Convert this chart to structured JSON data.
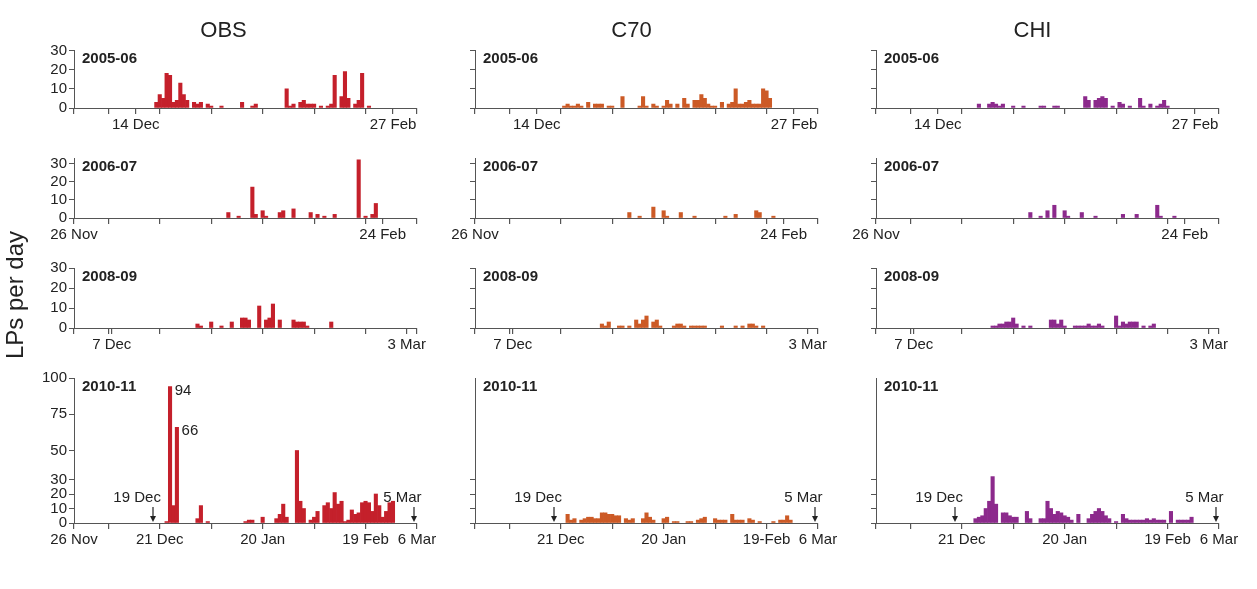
{
  "chart_data": [
    {
      "type": "bar",
      "title": "OBS",
      "subtitle": "2005-06",
      "xlim": [
        "2005-11-26",
        "2006-03-06"
      ],
      "xticks": [
        {
          "value": "2005-11-26",
          "label": null
        },
        {
          "value": "2005-12-06",
          "label": null
        },
        {
          "value": "2005-12-14",
          "label": "14 Dec"
        },
        {
          "value": "2005-12-21",
          "label": null
        },
        {
          "value": "2006-01-05",
          "label": null
        },
        {
          "value": "2006-01-20",
          "label": null
        },
        {
          "value": "2006-02-04",
          "label": null
        },
        {
          "value": "2006-02-19",
          "label": null
        },
        {
          "value": "2006-02-27",
          "label": "27 Feb"
        },
        {
          "value": "2006-03-06",
          "label": null
        }
      ],
      "ylim": [
        0,
        30
      ],
      "yticks": [
        0,
        10,
        20,
        30
      ],
      "series": [
        {
          "color": "#c4202b",
          "x": [
            "2005-12-20",
            "2005-12-21",
            "2005-12-22",
            "2005-12-23",
            "2005-12-24",
            "2005-12-25",
            "2005-12-26",
            "2005-12-27",
            "2005-12-28",
            "2005-12-29",
            "2005-12-31",
            "2006-01-01",
            "2006-01-02",
            "2006-01-04",
            "2006-01-05",
            "2006-01-08",
            "2006-01-14",
            "2006-01-17",
            "2006-01-18",
            "2006-01-27",
            "2006-01-28",
            "2006-01-29",
            "2006-01-31",
            "2006-02-01",
            "2006-02-02",
            "2006-02-03",
            "2006-02-04",
            "2006-02-06",
            "2006-02-08",
            "2006-02-09",
            "2006-02-10",
            "2006-02-12",
            "2006-02-13",
            "2006-02-14",
            "2006-02-16",
            "2006-02-17",
            "2006-02-18",
            "2006-02-20"
          ],
          "values": [
            3,
            7,
            5,
            18,
            17,
            3,
            4,
            13,
            7,
            4,
            3,
            2,
            3,
            2,
            1,
            1,
            3,
            1,
            2,
            10,
            1,
            2,
            3,
            4,
            2,
            2,
            2,
            1,
            1,
            2,
            17,
            6,
            19,
            5,
            2,
            4,
            18,
            1
          ]
        }
      ]
    },
    {
      "type": "bar",
      "title": "C70",
      "subtitle": "2005-06",
      "xlim": [
        "2005-11-26",
        "2006-03-06"
      ],
      "xticks": [
        {
          "value": "2005-11-26",
          "label": null
        },
        {
          "value": "2005-12-06",
          "label": null
        },
        {
          "value": "2005-12-14",
          "label": "14 Dec"
        },
        {
          "value": "2005-12-21",
          "label": null
        },
        {
          "value": "2006-01-05",
          "label": null
        },
        {
          "value": "2006-01-20",
          "label": null
        },
        {
          "value": "2006-02-04",
          "label": null
        },
        {
          "value": "2006-02-19",
          "label": null
        },
        {
          "value": "2006-02-27",
          "label": "27 Feb"
        },
        {
          "value": "2006-03-06",
          "label": null
        }
      ],
      "ylim": [
        0,
        30
      ],
      "yticks": [
        {
          "value": 0,
          "label": null
        },
        {
          "value": 10,
          "label": null
        },
        {
          "value": 20,
          "label": null
        },
        {
          "value": 30,
          "label": null
        }
      ],
      "tick_labels": "x",
      "series": [
        {
          "color": "#cc5a26",
          "x": [
            "2005-12-22",
            "2005-12-23",
            "2005-12-24",
            "2005-12-25",
            "2005-12-26",
            "2005-12-27",
            "2005-12-29",
            "2005-12-31",
            "2006-01-01",
            "2006-01-02",
            "2006-01-04",
            "2006-01-05",
            "2006-01-08",
            "2006-01-13",
            "2006-01-14",
            "2006-01-15",
            "2006-01-17",
            "2006-01-18",
            "2006-01-20",
            "2006-01-21",
            "2006-01-22",
            "2006-01-24",
            "2006-01-26",
            "2006-01-27",
            "2006-01-29",
            "2006-01-30",
            "2006-01-31",
            "2006-02-01",
            "2006-02-02",
            "2006-02-03",
            "2006-02-04",
            "2006-02-06",
            "2006-02-08",
            "2006-02-09",
            "2006-02-10",
            "2006-02-11",
            "2006-02-12",
            "2006-02-13",
            "2006-02-14",
            "2006-02-15",
            "2006-02-16",
            "2006-02-17",
            "2006-02-18",
            "2006-02-19",
            "2006-02-20"
          ],
          "values": [
            1,
            2,
            1,
            1,
            2,
            1,
            3,
            2,
            2,
            2,
            1,
            1,
            6,
            1,
            6,
            1,
            2,
            1,
            1,
            4,
            2,
            2,
            5,
            2,
            4,
            4,
            7,
            5,
            2,
            1,
            1,
            3,
            2,
            3,
            10,
            2,
            2,
            3,
            4,
            2,
            2,
            2,
            10,
            9,
            5
          ]
        }
      ]
    },
    {
      "type": "bar",
      "title": "CHI",
      "subtitle": "2005-06",
      "xlim": [
        "2005-11-26",
        "2006-03-06"
      ],
      "xticks": [
        {
          "value": "2005-11-26",
          "label": null
        },
        {
          "value": "2005-12-06",
          "label": null
        },
        {
          "value": "2005-12-14",
          "label": "14 Dec"
        },
        {
          "value": "2005-12-21",
          "label": null
        },
        {
          "value": "2006-01-05",
          "label": null
        },
        {
          "value": "2006-01-20",
          "label": null
        },
        {
          "value": "2006-02-04",
          "label": null
        },
        {
          "value": "2006-02-19",
          "label": null
        },
        {
          "value": "2006-02-27",
          "label": "27 Feb"
        },
        {
          "value": "2006-03-06",
          "label": null
        }
      ],
      "ylim": [
        0,
        30
      ],
      "yticks": [
        {
          "value": 0,
          "label": null
        },
        {
          "value": 10,
          "label": null
        },
        {
          "value": 20,
          "label": null
        },
        {
          "value": 30,
          "label": null
        }
      ],
      "tick_labels": "x",
      "series": [
        {
          "color": "#8c2a8c",
          "x": [
            "2005-12-26",
            "2005-12-29",
            "2005-12-30",
            "2005-12-31",
            "2006-01-01",
            "2006-01-02",
            "2006-01-05",
            "2006-01-08",
            "2006-01-13",
            "2006-01-14",
            "2006-01-17",
            "2006-01-18",
            "2006-01-26",
            "2006-01-27",
            "2006-01-29",
            "2006-01-30",
            "2006-01-31",
            "2006-02-01",
            "2006-02-03",
            "2006-02-05",
            "2006-02-06",
            "2006-02-08",
            "2006-02-11",
            "2006-02-12",
            "2006-02-14",
            "2006-02-16",
            "2006-02-17",
            "2006-02-18",
            "2006-02-19"
          ],
          "values": [
            2,
            2,
            3,
            2,
            1,
            2,
            1,
            1,
            1,
            1,
            1,
            1,
            6,
            4,
            4,
            5,
            6,
            5,
            1,
            3,
            2,
            1,
            5,
            1,
            2,
            1,
            2,
            4,
            1
          ]
        }
      ]
    },
    {
      "type": "bar",
      "subtitle": "2006-07",
      "xlim": [
        "2006-11-26",
        "2007-03-06"
      ],
      "xticks": [
        {
          "value": "2006-11-26",
          "label": "26 Nov"
        },
        {
          "value": "2006-12-06",
          "label": null
        },
        {
          "value": "2006-12-21",
          "label": null
        },
        {
          "value": "2007-01-05",
          "label": null
        },
        {
          "value": "2007-01-20",
          "label": null
        },
        {
          "value": "2007-02-04",
          "label": null
        },
        {
          "value": "2007-02-19",
          "label": null
        },
        {
          "value": "2007-02-24",
          "label": "24 Feb"
        },
        {
          "value": "2007-03-06",
          "label": null
        }
      ],
      "ylim": [
        0,
        33
      ],
      "yticks": [
        0,
        10,
        20,
        30
      ],
      "series": [
        {
          "color": "#c4202b",
          "x": [
            "2007-01-10",
            "2007-01-13",
            "2007-01-17",
            "2007-01-18",
            "2007-01-20",
            "2007-01-21",
            "2007-01-25",
            "2007-01-26",
            "2007-01-29",
            "2007-02-03",
            "2007-02-05",
            "2007-02-07",
            "2007-02-10",
            "2007-02-17",
            "2007-02-19",
            "2007-02-21",
            "2007-02-22"
          ],
          "values": [
            3,
            1,
            17,
            2,
            4,
            1,
            3,
            4,
            5,
            3,
            2,
            1,
            2,
            32,
            1,
            2,
            8
          ]
        }
      ]
    },
    {
      "type": "bar",
      "subtitle": "2006-07",
      "xlim": [
        "2006-11-26",
        "2007-03-06"
      ],
      "xticks": [
        {
          "value": "2006-11-26",
          "label": "26 Nov"
        },
        {
          "value": "2006-12-06",
          "label": null
        },
        {
          "value": "2006-12-21",
          "label": null
        },
        {
          "value": "2007-01-05",
          "label": null
        },
        {
          "value": "2007-01-20",
          "label": null
        },
        {
          "value": "2007-02-04",
          "label": null
        },
        {
          "value": "2007-02-19",
          "label": null
        },
        {
          "value": "2007-02-24",
          "label": "24 Feb"
        },
        {
          "value": "2007-03-06",
          "label": null
        }
      ],
      "ylim": [
        0,
        33
      ],
      "yticks": [
        {
          "value": 0,
          "label": null
        },
        {
          "value": 10,
          "label": null
        },
        {
          "value": 20,
          "label": null
        },
        {
          "value": 30,
          "label": null
        }
      ],
      "tick_labels": "x",
      "series": [
        {
          "color": "#cc5a26",
          "x": [
            "2007-01-10",
            "2007-01-13",
            "2007-01-17",
            "2007-01-20",
            "2007-01-21",
            "2007-01-25",
            "2007-01-29",
            "2007-02-07",
            "2007-02-10",
            "2007-02-16",
            "2007-02-17",
            "2007-02-21"
          ],
          "values": [
            3,
            1,
            6,
            4,
            1,
            3,
            1,
            1,
            2,
            4,
            3,
            1
          ]
        }
      ]
    },
    {
      "type": "bar",
      "subtitle": "2006-07",
      "xlim": [
        "2006-11-26",
        "2007-03-06"
      ],
      "xticks": [
        {
          "value": "2006-11-26",
          "label": "26 Nov"
        },
        {
          "value": "2006-12-06",
          "label": null
        },
        {
          "value": "2006-12-21",
          "label": null
        },
        {
          "value": "2007-01-05",
          "label": null
        },
        {
          "value": "2007-01-20",
          "label": null
        },
        {
          "value": "2007-02-04",
          "label": null
        },
        {
          "value": "2007-02-19",
          "label": null
        },
        {
          "value": "2007-02-24",
          "label": "24 Feb"
        },
        {
          "value": "2007-03-06",
          "label": null
        }
      ],
      "ylim": [
        0,
        33
      ],
      "yticks": [
        {
          "value": 0,
          "label": null
        },
        {
          "value": 10,
          "label": null
        },
        {
          "value": 20,
          "label": null
        },
        {
          "value": 30,
          "label": null
        }
      ],
      "tick_labels": "x",
      "series": [
        {
          "color": "#8c2a8c",
          "x": [
            "2007-01-10",
            "2007-01-13",
            "2007-01-15",
            "2007-01-17",
            "2007-01-20",
            "2007-01-21",
            "2007-01-25",
            "2007-01-29",
            "2007-02-06",
            "2007-02-10",
            "2007-02-16",
            "2007-02-17",
            "2007-02-21"
          ],
          "values": [
            3,
            1,
            4,
            7,
            4,
            1,
            3,
            1,
            2,
            2,
            7,
            1,
            1
          ]
        }
      ]
    },
    {
      "type": "bar",
      "subtitle": "2008-09",
      "ylabel": "LPs per day",
      "xlim": [
        "2008-11-26",
        "2009-03-06"
      ],
      "xticks": [
        {
          "value": "2008-11-26",
          "label": null
        },
        {
          "value": "2008-12-06",
          "label": null
        },
        {
          "value": "2008-12-07",
          "label": "7 Dec"
        },
        {
          "value": "2008-12-21",
          "label": null
        },
        {
          "value": "2009-01-05",
          "label": null
        },
        {
          "value": "2009-01-20",
          "label": null
        },
        {
          "value": "2009-02-04",
          "label": null
        },
        {
          "value": "2009-02-19",
          "label": null
        },
        {
          "value": "2009-03-03",
          "label": "3 Mar"
        },
        {
          "value": "2009-03-06",
          "label": null
        }
      ],
      "ylim": [
        0,
        30
      ],
      "yticks": [
        0,
        10,
        20,
        30
      ],
      "series": [
        {
          "color": "#c4202b",
          "x": [
            "2009-01-01",
            "2009-01-02",
            "2009-01-05",
            "2009-01-08",
            "2009-01-11",
            "2009-01-14",
            "2009-01-15",
            "2009-01-16",
            "2009-01-19",
            "2009-01-21",
            "2009-01-22",
            "2009-01-23",
            "2009-01-25",
            "2009-01-29",
            "2009-01-30",
            "2009-01-31",
            "2009-02-01",
            "2009-02-02",
            "2009-02-09"
          ],
          "values": [
            2,
            1,
            3,
            1,
            3,
            5,
            5,
            4,
            11,
            4,
            5,
            12,
            4,
            4,
            3,
            3,
            3,
            1,
            3
          ]
        }
      ]
    },
    {
      "type": "bar",
      "subtitle": "2008-09",
      "xlim": [
        "2008-11-26",
        "2009-03-06"
      ],
      "xticks": [
        {
          "value": "2008-11-26",
          "label": null
        },
        {
          "value": "2008-12-06",
          "label": null
        },
        {
          "value": "2008-12-07",
          "label": "7 Dec"
        },
        {
          "value": "2008-12-21",
          "label": null
        },
        {
          "value": "2009-01-05",
          "label": null
        },
        {
          "value": "2009-01-20",
          "label": null
        },
        {
          "value": "2009-02-04",
          "label": null
        },
        {
          "value": "2009-02-19",
          "label": null
        },
        {
          "value": "2009-03-03",
          "label": "3 Mar"
        },
        {
          "value": "2009-03-06",
          "label": null
        }
      ],
      "ylim": [
        0,
        30
      ],
      "yticks": [
        {
          "value": 0,
          "label": null
        },
        {
          "value": 10,
          "label": null
        },
        {
          "value": 20,
          "label": null
        },
        {
          "value": 30,
          "label": null
        }
      ],
      "tick_labels": "x",
      "series": [
        {
          "color": "#cc5a26",
          "x": [
            "2009-01-02",
            "2009-01-03",
            "2009-01-04",
            "2009-01-07",
            "2009-01-08",
            "2009-01-10",
            "2009-01-12",
            "2009-01-13",
            "2009-01-14",
            "2009-01-15",
            "2009-01-17",
            "2009-01-18",
            "2009-01-19",
            "2009-01-23",
            "2009-01-24",
            "2009-01-25",
            "2009-01-26",
            "2009-01-28",
            "2009-01-29",
            "2009-01-30",
            "2009-01-31",
            "2009-02-01",
            "2009-02-06",
            "2009-02-10",
            "2009-02-12",
            "2009-02-14",
            "2009-02-15",
            "2009-02-16",
            "2009-02-18"
          ],
          "values": [
            2,
            1,
            3,
            1,
            1,
            1,
            4,
            2,
            4,
            6,
            3,
            4,
            1,
            1,
            2,
            2,
            1,
            1,
            1,
            1,
            1,
            1,
            1,
            1,
            1,
            2,
            2,
            1,
            1
          ]
        }
      ]
    },
    {
      "type": "bar",
      "subtitle": "2008-09",
      "xlim": [
        "2008-11-26",
        "2009-03-06"
      ],
      "xticks": [
        {
          "value": "2008-11-26",
          "label": null
        },
        {
          "value": "2008-12-06",
          "label": null
        },
        {
          "value": "2008-12-07",
          "label": "7 Dec"
        },
        {
          "value": "2008-12-21",
          "label": null
        },
        {
          "value": "2009-01-05",
          "label": null
        },
        {
          "value": "2009-01-20",
          "label": null
        },
        {
          "value": "2009-02-04",
          "label": null
        },
        {
          "value": "2009-02-19",
          "label": null
        },
        {
          "value": "2009-03-03",
          "label": "3 Mar"
        },
        {
          "value": "2009-03-06",
          "label": null
        }
      ],
      "ylim": [
        0,
        30
      ],
      "yticks": [
        {
          "value": 0,
          "label": null
        },
        {
          "value": 10,
          "label": null
        },
        {
          "value": 20,
          "label": null
        },
        {
          "value": 30,
          "label": null
        }
      ],
      "tick_labels": "x",
      "series": [
        {
          "color": "#8c2a8c",
          "x": [
            "2008-12-30",
            "2008-12-31",
            "2009-01-01",
            "2009-01-02",
            "2009-01-03",
            "2009-01-04",
            "2009-01-05",
            "2009-01-06",
            "2009-01-08",
            "2009-01-10",
            "2009-01-16",
            "2009-01-17",
            "2009-01-18",
            "2009-01-19",
            "2009-01-20",
            "2009-01-23",
            "2009-01-24",
            "2009-01-25",
            "2009-01-26",
            "2009-01-27",
            "2009-01-28",
            "2009-01-29",
            "2009-01-30",
            "2009-01-31",
            "2009-02-04",
            "2009-02-05",
            "2009-02-06",
            "2009-02-07",
            "2009-02-08",
            "2009-02-09",
            "2009-02-10",
            "2009-02-12",
            "2009-02-14",
            "2009-02-15"
          ],
          "values": [
            1,
            1,
            2,
            2,
            3,
            3,
            5,
            2,
            1,
            1,
            4,
            4,
            2,
            4,
            1,
            1,
            1,
            1,
            1,
            2,
            1,
            1,
            2,
            1,
            6,
            1,
            3,
            2,
            3,
            3,
            3,
            1,
            1,
            2
          ]
        }
      ]
    },
    {
      "type": "bar",
      "subtitle": "2010-11",
      "xlim": [
        "2010-11-26",
        "2011-03-06"
      ],
      "xticks": [
        {
          "value": "2010-11-26",
          "label": "26 Nov"
        },
        {
          "value": "2010-12-06",
          "label": null
        },
        {
          "value": "2010-12-21",
          "label": "21 Dec"
        },
        {
          "value": "2011-01-05",
          "label": null
        },
        {
          "value": "2011-01-20",
          "label": "20 Jan"
        },
        {
          "value": "2011-02-04",
          "label": null
        },
        {
          "value": "2011-02-19",
          "label": "19 Feb"
        },
        {
          "value": "2011-03-06",
          "label": "6 Mar"
        }
      ],
      "ylim": [
        0,
        100
      ],
      "yticks": [
        0,
        10,
        20,
        30,
        50,
        75,
        100
      ],
      "ref_lines": [
        {
          "axis": "x",
          "value": "2010-12-19",
          "label": "19 Dec"
        },
        {
          "axis": "x",
          "value": "2011-03-05",
          "label": "5 Mar"
        }
      ],
      "series": [
        {
          "color": "#c4202b",
          "x": [
            "2010-12-23",
            "2010-12-24",
            "2010-12-25",
            "2010-12-26",
            "2011-01-01",
            "2011-01-02",
            "2011-01-04",
            "2011-01-15",
            "2011-01-16",
            "2011-01-17",
            "2011-01-20",
            "2011-01-24",
            "2011-01-25",
            "2011-01-26",
            "2011-01-27",
            "2011-01-30",
            "2011-01-31",
            "2011-02-01",
            "2011-02-03",
            "2011-02-04",
            "2011-02-05",
            "2011-02-07",
            "2011-02-08",
            "2011-02-09",
            "2011-02-10",
            "2011-02-11",
            "2011-02-12",
            "2011-02-13",
            "2011-02-14",
            "2011-02-15",
            "2011-02-16",
            "2011-02-17",
            "2011-02-18",
            "2011-02-19",
            "2011-02-20",
            "2011-02-21",
            "2011-02-22",
            "2011-02-23",
            "2011-02-24",
            "2011-02-25",
            "2011-02-26",
            "2011-02-27"
          ],
          "values": [
            1,
            94,
            12,
            66,
            3,
            12,
            1,
            1,
            2,
            2,
            4,
            3,
            6,
            13,
            4,
            50,
            15,
            10,
            2,
            4,
            8,
            12,
            14,
            10,
            21,
            13,
            15,
            1,
            2,
            9,
            6,
            7,
            14,
            15,
            14,
            8,
            20,
            12,
            4,
            8,
            14,
            15
          ],
          "value_labels": [
            null,
            "94",
            null,
            "66",
            null,
            null,
            null,
            null,
            null,
            null,
            null,
            null,
            null,
            null,
            null,
            null,
            null,
            null,
            null,
            null,
            null,
            null,
            null,
            null,
            null,
            null,
            null,
            null,
            null,
            null,
            null,
            null,
            null,
            null,
            null,
            null,
            null,
            null,
            null,
            null,
            null,
            null
          ]
        }
      ]
    },
    {
      "type": "bar",
      "subtitle": "2010-11",
      "xlim": [
        "2010-11-26",
        "2011-03-06"
      ],
      "xticks": [
        {
          "value": "2010-11-26",
          "label": null
        },
        {
          "value": "2010-12-06",
          "label": null
        },
        {
          "value": "2010-12-21",
          "label": "21 Dec"
        },
        {
          "value": "2011-01-05",
          "label": null
        },
        {
          "value": "2011-01-20",
          "label": "20 Jan"
        },
        {
          "value": "2011-02-04",
          "label": null
        },
        {
          "value": "2011-02-19",
          "label": "19-Feb"
        },
        {
          "value": "2011-03-06",
          "label": "6 Mar"
        }
      ],
      "ylim": [
        0,
        100
      ],
      "yticks": [
        {
          "value": 0,
          "label": null
        },
        {
          "value": 10,
          "label": null
        },
        {
          "value": 20,
          "label": null
        },
        {
          "value": 30,
          "label": null
        }
      ],
      "tick_labels": "x",
      "ref_lines": [
        {
          "axis": "x",
          "value": "2010-12-19",
          "label": "19 Dec"
        },
        {
          "axis": "x",
          "value": "2011-03-05",
          "label": "5 Mar"
        }
      ],
      "series": [
        {
          "color": "#cc5a26",
          "x": [
            "2010-12-23",
            "2010-12-24",
            "2010-12-25",
            "2010-12-27",
            "2010-12-28",
            "2010-12-29",
            "2010-12-30",
            "2010-12-31",
            "2011-01-01",
            "2011-01-02",
            "2011-01-03",
            "2011-01-04",
            "2011-01-05",
            "2011-01-06",
            "2011-01-07",
            "2011-01-09",
            "2011-01-10",
            "2011-01-11",
            "2011-01-14",
            "2011-01-15",
            "2011-01-16",
            "2011-01-17",
            "2011-01-20",
            "2011-01-21",
            "2011-01-23",
            "2011-01-24",
            "2011-01-27",
            "2011-01-28",
            "2011-01-30",
            "2011-01-31",
            "2011-02-01",
            "2011-02-04",
            "2011-02-05",
            "2011-02-06",
            "2011-02-07",
            "2011-02-09",
            "2011-02-10",
            "2011-02-11",
            "2011-02-12",
            "2011-02-14",
            "2011-02-15",
            "2011-02-17",
            "2011-02-21",
            "2011-02-23",
            "2011-02-24",
            "2011-02-25",
            "2011-02-26"
          ],
          "values": [
            6,
            2,
            3,
            2,
            3,
            4,
            4,
            3,
            3,
            7,
            7,
            6,
            6,
            5,
            5,
            3,
            2,
            3,
            3,
            7,
            4,
            2,
            3,
            4,
            1,
            1,
            1,
            1,
            2,
            3,
            4,
            3,
            2,
            2,
            2,
            6,
            2,
            2,
            2,
            3,
            2,
            1,
            1,
            2,
            2,
            5,
            2
          ]
        }
      ]
    },
    {
      "type": "bar",
      "subtitle": "2010-11",
      "xlim": [
        "2010-11-26",
        "2011-03-06"
      ],
      "xticks": [
        {
          "value": "2010-11-26",
          "label": null
        },
        {
          "value": "2010-12-06",
          "label": null
        },
        {
          "value": "2010-12-21",
          "label": "21 Dec"
        },
        {
          "value": "2011-01-05",
          "label": null
        },
        {
          "value": "2011-01-20",
          "label": "20 Jan"
        },
        {
          "value": "2011-02-04",
          "label": null
        },
        {
          "value": "2011-02-19",
          "label": "19 Feb"
        },
        {
          "value": "2011-03-06",
          "label": "6 Mar"
        }
      ],
      "ylim": [
        0,
        100
      ],
      "yticks": [
        {
          "value": 0,
          "label": null
        },
        {
          "value": 10,
          "label": null
        },
        {
          "value": 20,
          "label": null
        },
        {
          "value": 30,
          "label": null
        }
      ],
      "tick_labels": "x",
      "ref_lines": [
        {
          "axis": "x",
          "value": "2010-12-19",
          "label": "19 Dec"
        },
        {
          "axis": "x",
          "value": "2011-03-05",
          "label": "5 Mar"
        }
      ],
      "series": [
        {
          "color": "#8c2a8c",
          "x": [
            "2010-12-25",
            "2010-12-26",
            "2010-12-27",
            "2010-12-28",
            "2010-12-29",
            "2010-12-30",
            "2010-12-31",
            "2011-01-02",
            "2011-01-03",
            "2011-01-04",
            "2011-01-05",
            "2011-01-06",
            "2011-01-09",
            "2011-01-10",
            "2011-01-13",
            "2011-01-14",
            "2011-01-15",
            "2011-01-16",
            "2011-01-17",
            "2011-01-18",
            "2011-01-19",
            "2011-01-20",
            "2011-01-21",
            "2011-01-22",
            "2011-01-24",
            "2011-01-27",
            "2011-01-28",
            "2011-01-29",
            "2011-01-30",
            "2011-01-31",
            "2011-02-01",
            "2011-02-02",
            "2011-02-04",
            "2011-02-06",
            "2011-02-07",
            "2011-02-08",
            "2011-02-09",
            "2011-02-10",
            "2011-02-11",
            "2011-02-12",
            "2011-02-13",
            "2011-02-14",
            "2011-02-15",
            "2011-02-16",
            "2011-02-17",
            "2011-02-18",
            "2011-02-20",
            "2011-02-22",
            "2011-02-23",
            "2011-02-24",
            "2011-02-25",
            "2011-02-26"
          ],
          "values": [
            3,
            4,
            5,
            10,
            15,
            32,
            13,
            7,
            7,
            5,
            4,
            4,
            8,
            3,
            3,
            3,
            15,
            10,
            6,
            8,
            7,
            5,
            4,
            2,
            6,
            3,
            6,
            8,
            10,
            8,
            5,
            3,
            1,
            6,
            3,
            2,
            2,
            2,
            2,
            2,
            3,
            2,
            3,
            2,
            2,
            2,
            8,
            2,
            2,
            2,
            2,
            4
          ]
        }
      ]
    }
  ]
}
